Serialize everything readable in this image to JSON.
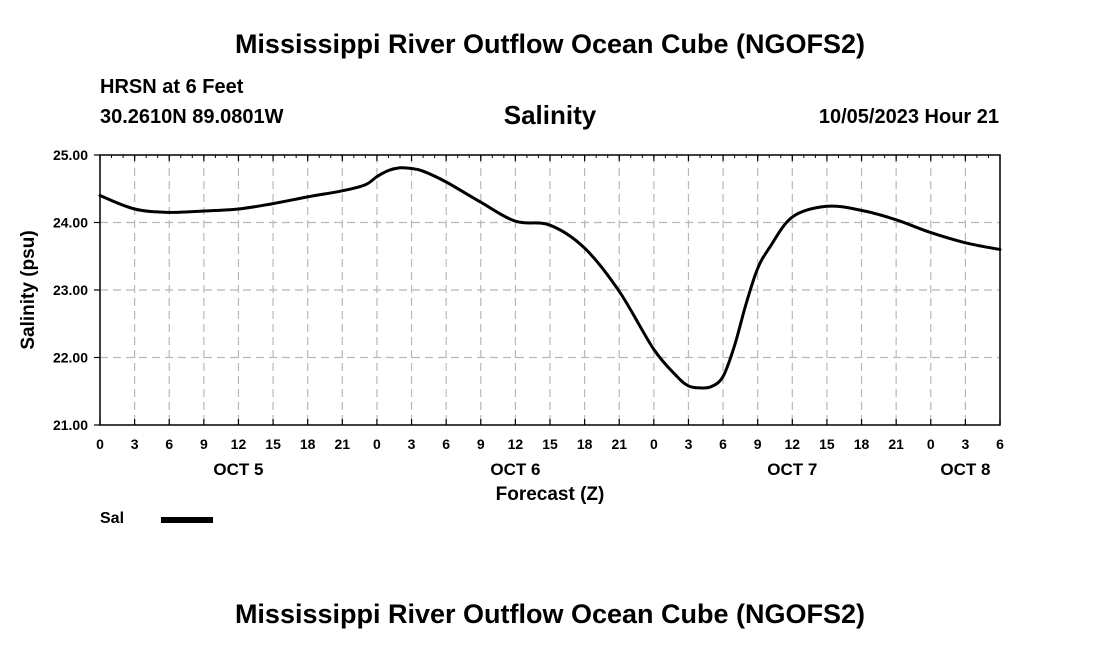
{
  "header": {
    "title": "Mississippi River Outflow Ocean Cube (NGOFS2)",
    "station": "HRSN at 6 Feet",
    "coords": "30.2610N  89.0801W",
    "chart_title": "Salinity",
    "datetime": "10/05/2023 Hour 21"
  },
  "footer": {
    "title": "Mississippi River Outflow Ocean Cube (NGOFS2)"
  },
  "legend": {
    "label": "Sal",
    "color": "#000000"
  },
  "chart_data": {
    "type": "line",
    "title": "Salinity",
    "xlabel": "Forecast (Z)",
    "ylabel": "Salinity (psu)",
    "ylim": [
      21.0,
      25.0
    ],
    "yticks": [
      "21.00",
      "22.00",
      "23.00",
      "24.00",
      "25.00"
    ],
    "xlim_hours": [
      0,
      78
    ],
    "xtick_hours": [
      0,
      3,
      6,
      9,
      12,
      15,
      18,
      21,
      24,
      27,
      30,
      33,
      36,
      39,
      42,
      45,
      48,
      51,
      54,
      57,
      60,
      63,
      66,
      69,
      72,
      75,
      78
    ],
    "xtick_labels": [
      "0",
      "3",
      "6",
      "9",
      "12",
      "15",
      "18",
      "21",
      "0",
      "3",
      "6",
      "9",
      "12",
      "15",
      "18",
      "21",
      "0",
      "3",
      "6",
      "9",
      "12",
      "15",
      "18",
      "21",
      "0",
      "3",
      "6"
    ],
    "day_labels": [
      {
        "label": "OCT 5",
        "hour": 12
      },
      {
        "label": "OCT 6",
        "hour": 36
      },
      {
        "label": "OCT 7",
        "hour": 60
      },
      {
        "label": "OCT 8",
        "hour": 75
      }
    ],
    "grid": true,
    "series": [
      {
        "name": "Sal",
        "color": "#000000",
        "x": [
          0,
          3,
          6,
          9,
          12,
          15,
          18,
          21,
          23,
          24,
          25,
          26,
          27,
          28,
          30,
          33,
          36,
          39,
          42,
          45,
          48,
          50,
          51,
          52,
          53,
          54,
          55,
          56,
          57,
          58,
          60,
          63,
          66,
          69,
          72,
          75,
          78
        ],
        "values": [
          24.4,
          24.2,
          24.15,
          24.17,
          24.2,
          24.28,
          24.38,
          24.47,
          24.56,
          24.68,
          24.77,
          24.81,
          24.8,
          24.76,
          24.6,
          24.3,
          24.02,
          23.96,
          23.62,
          22.98,
          22.12,
          21.72,
          21.58,
          21.55,
          21.57,
          21.72,
          22.18,
          22.8,
          23.32,
          23.62,
          24.08,
          24.24,
          24.18,
          24.04,
          23.85,
          23.7,
          23.6
        ]
      }
    ]
  }
}
